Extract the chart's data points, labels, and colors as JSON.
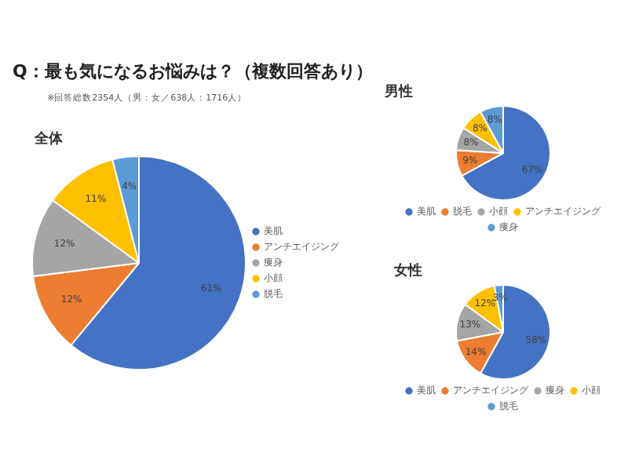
{
  "chart_data": [
    {
      "type": "other",
      "title": "Q：最も気になるお悩みは？（複数回答あり）",
      "subtitle": "※回答総数2354人（男：女／638人：1716人）"
    },
    {
      "type": "pie",
      "title": "全体",
      "categories": [
        "美肌",
        "アンチエイジング",
        "痩身",
        "小顔",
        "脱毛"
      ],
      "values": [
        61,
        12,
        12,
        11,
        4
      ],
      "value_labels": [
        "61%",
        "12%",
        "12%",
        "11%",
        "4%"
      ],
      "colors": [
        "#4472c4",
        "#ed7d31",
        "#a5a5a5",
        "#ffc000",
        "#5b9bd5"
      ],
      "legend": "right"
    },
    {
      "type": "pie",
      "title": "男性",
      "categories": [
        "美肌",
        "脱毛",
        "小顔",
        "アンチエイジング",
        "痩身"
      ],
      "values": [
        67,
        9,
        8,
        8,
        8
      ],
      "value_labels": [
        "67%",
        "9%",
        "8%",
        "8%",
        "8%"
      ],
      "colors": [
        "#4472c4",
        "#ed7d31",
        "#a5a5a5",
        "#ffc000",
        "#5b9bd5"
      ],
      "legend": "bottom"
    },
    {
      "type": "pie",
      "title": "女性",
      "categories": [
        "美肌",
        "アンチエイジング",
        "痩身",
        "小顔",
        "脱毛"
      ],
      "values": [
        58,
        14,
        13,
        12,
        3
      ],
      "value_labels": [
        "58%",
        "14%",
        "13%",
        "12%",
        "3%"
      ],
      "colors": [
        "#4472c4",
        "#ed7d31",
        "#a5a5a5",
        "#ffc000",
        "#5b9bd5"
      ],
      "legend": "bottom"
    }
  ]
}
